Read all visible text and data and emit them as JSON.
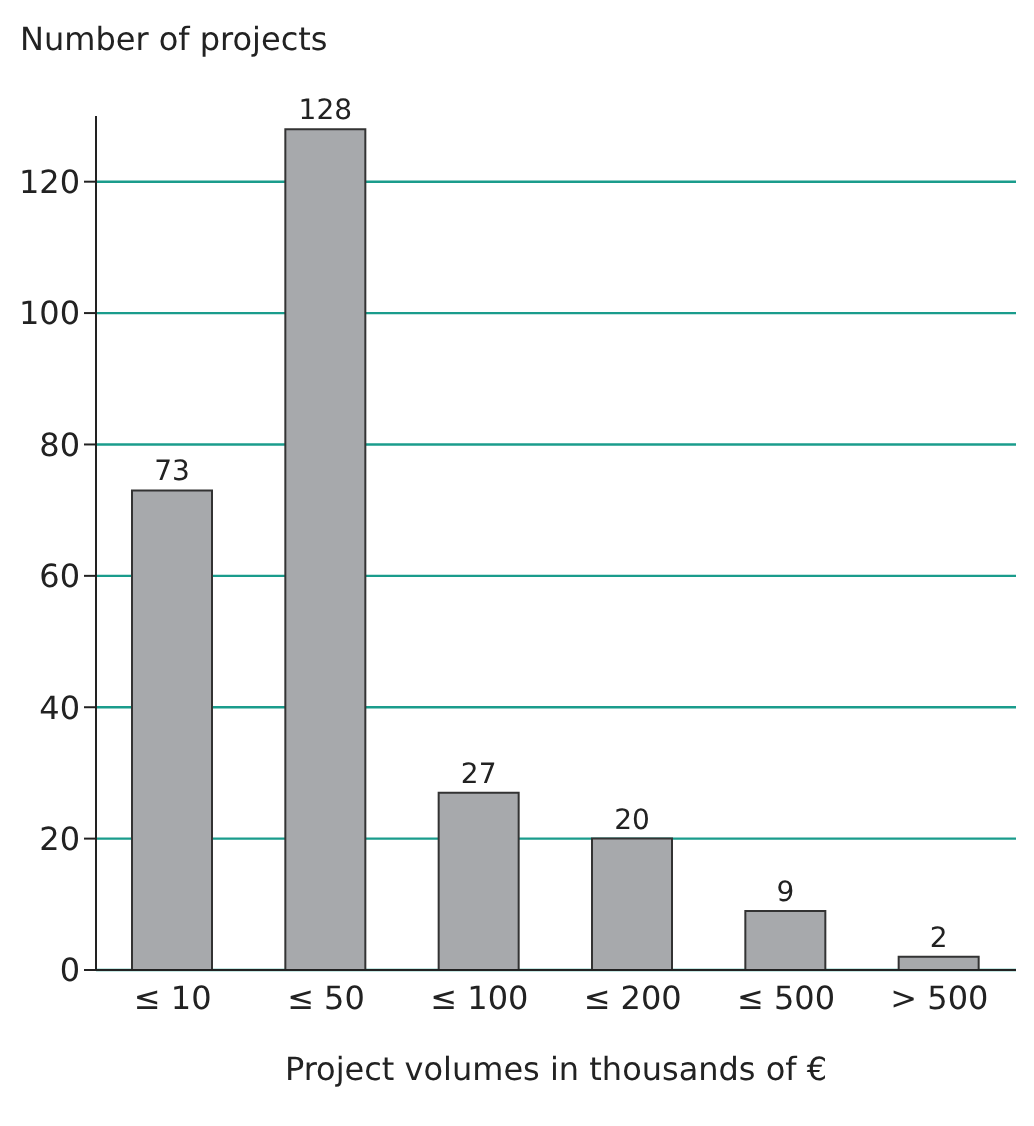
{
  "chart_data": {
    "type": "bar",
    "ylabel": "Number of projects",
    "xlabel": "Project volumes in thousands of €",
    "categories": [
      "≤ 10",
      "≤ 50",
      "≤ 100",
      "≤ 200",
      "≤ 500",
      "> 500"
    ],
    "values": [
      73,
      128,
      27,
      20,
      9,
      2
    ],
    "color": "#a7a9ac",
    "ylim": [
      0,
      130
    ],
    "yticks": [
      0,
      20,
      40,
      60,
      80,
      100,
      120
    ],
    "grid": "y",
    "data_labels": true
  }
}
